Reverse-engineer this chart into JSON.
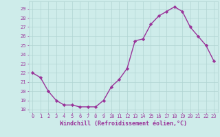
{
  "x": [
    0,
    1,
    2,
    3,
    4,
    5,
    6,
    7,
    8,
    9,
    10,
    11,
    12,
    13,
    14,
    15,
    16,
    17,
    18,
    19,
    20,
    21,
    22,
    23
  ],
  "y": [
    22.0,
    21.5,
    20.0,
    19.0,
    18.5,
    18.5,
    18.3,
    18.3,
    18.3,
    19.0,
    20.5,
    21.3,
    22.5,
    25.5,
    25.7,
    27.3,
    28.2,
    28.7,
    29.2,
    28.7,
    27.0,
    26.0,
    25.0,
    23.3
  ],
  "line_color": "#993399",
  "marker": "D",
  "markersize": 2.2,
  "linewidth": 1.0,
  "xlabel": "Windchill (Refroidissement éolien,°C)",
  "xlabel_fontsize": 6.0,
  "ylabel_ticks": [
    18,
    19,
    20,
    21,
    22,
    23,
    24,
    25,
    26,
    27,
    28,
    29
  ],
  "xtick_labels": [
    "0",
    "1",
    "2",
    "3",
    "4",
    "5",
    "6",
    "7",
    "8",
    "9",
    "10",
    "11",
    "12",
    "13",
    "14",
    "15",
    "16",
    "17",
    "18",
    "19",
    "20",
    "21",
    "22",
    "23"
  ],
  "ylim": [
    17.7,
    29.8
  ],
  "xlim": [
    -0.5,
    23.5
  ],
  "bg_color": "#ceecea",
  "grid_color": "#b0d4d2",
  "tick_color": "#993399",
  "tick_fontsize": 5.0
}
